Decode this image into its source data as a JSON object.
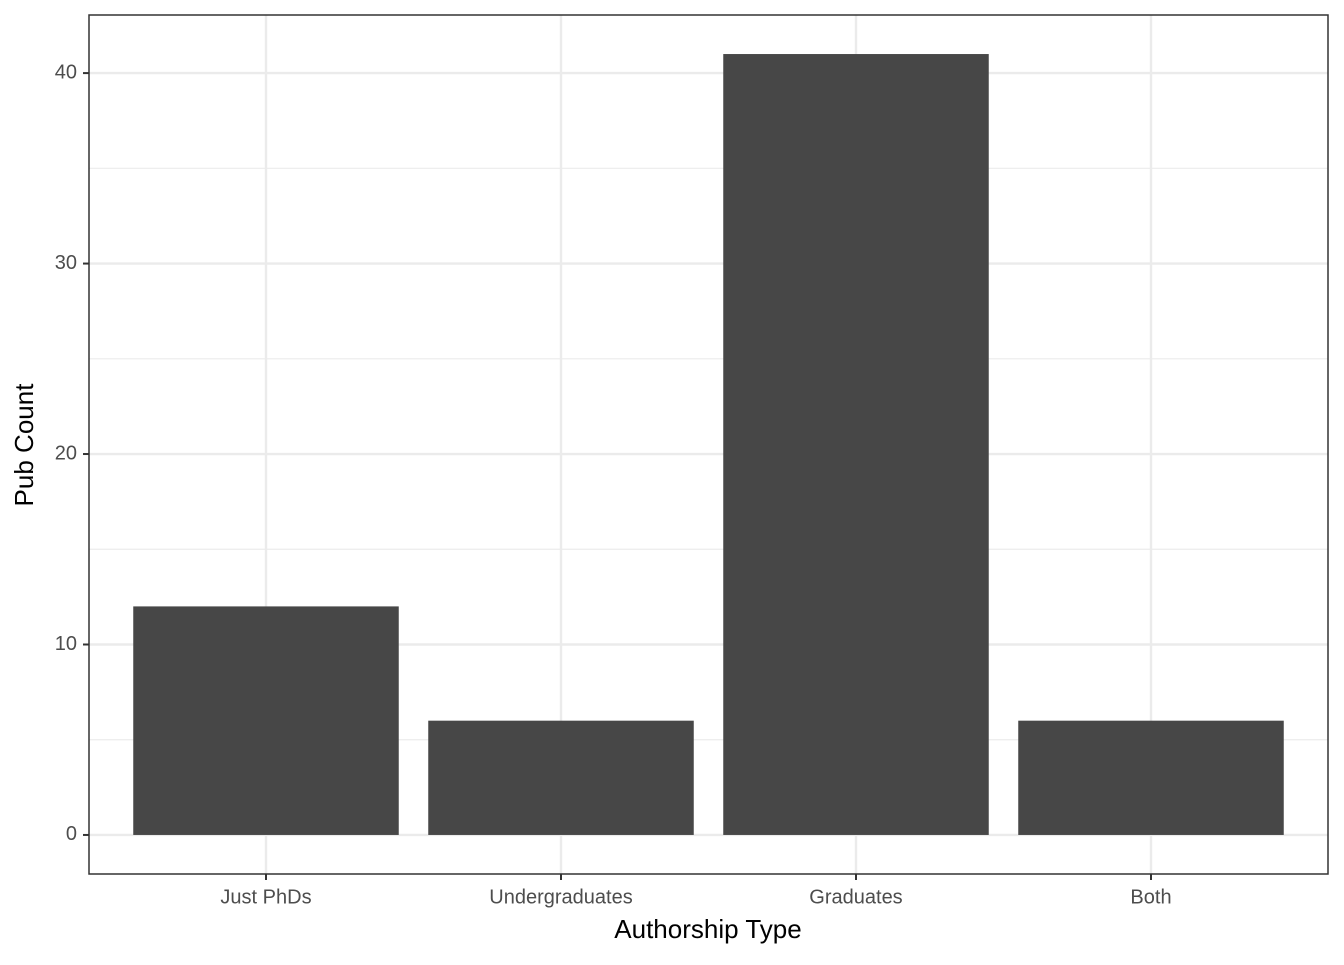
{
  "chart_data": {
    "type": "bar",
    "x_label": "Authorship Type",
    "y_label": "Pub Count",
    "categories": [
      "Just PhDs",
      "Undergraduates",
      "Graduates",
      "Both"
    ],
    "values": [
      12,
      6,
      41,
      6
    ],
    "color": "#474747",
    "ylim": [
      -2.05,
      43.05
    ],
    "yticks": [
      0,
      10,
      20,
      30,
      40
    ],
    "minor_yticks": [
      5,
      15,
      25,
      35
    ],
    "grid": true
  }
}
